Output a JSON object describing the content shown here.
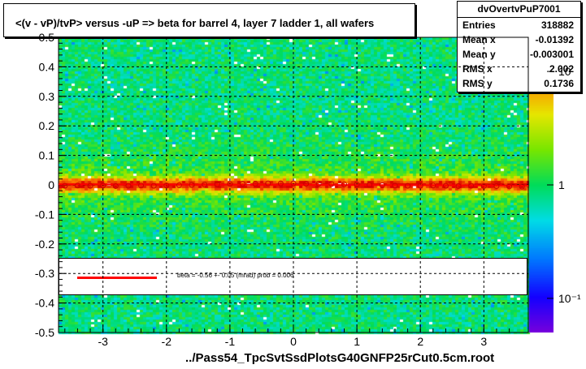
{
  "title": "<(v - vP)/tvP> versus  -uP => beta for barrel 4, layer 7 ladder 1, all wafers",
  "stats": {
    "name": "dvOvertvPuP7001",
    "rows": [
      {
        "key": "Entries",
        "value": "318882"
      },
      {
        "key": "Mean x",
        "value": "-0.01392"
      },
      {
        "key": "Mean y",
        "value": "-0.003001"
      },
      {
        "key": "RMS x",
        "value": "2.002"
      },
      {
        "key": "RMS y",
        "value": "0.1736"
      }
    ]
  },
  "legend": {
    "text": "beta =   -0.56 +-  0.05 (mrad) prob = 0.006",
    "line_color": "#ff0000"
  },
  "footer": "../Pass54_TpcSvtSsdPlotsG40GNFP25rCut0.5cm.root",
  "chart_data": {
    "type": "heatmap",
    "xlim": [
      -3.7,
      3.7
    ],
    "ylim": [
      -0.5,
      0.5
    ],
    "x_ticks": [
      -3,
      -2,
      -1,
      0,
      1,
      2,
      3
    ],
    "y_ticks": [
      -0.5,
      -0.4,
      -0.3,
      -0.2,
      -0.1,
      0,
      0.1,
      0.2,
      0.3,
      0.4,
      0.5
    ],
    "y_tick_labels": [
      "-0.5",
      "-0.4",
      "-0.3",
      "-0.2",
      "-0.1",
      "0",
      "0.1",
      "0.2",
      "0.3",
      "0.4",
      "0.5"
    ],
    "grid": true,
    "colorbar": {
      "scale": "log",
      "tick_labels": [
        "10",
        "1",
        "10⁻¹"
      ],
      "tick_values": [
        10,
        1,
        0.1
      ]
    },
    "band_center": 0.0,
    "band_sigma": 0.018,
    "profile_points": {
      "x": [
        -3.6,
        -3.4,
        -3.2,
        -3.0,
        -2.8,
        -2.6,
        -2.4,
        -2.2,
        -2.0,
        -1.8,
        -1.6,
        -1.4,
        -1.2,
        -1.0,
        -0.8,
        -0.6,
        -0.4,
        -0.2,
        0.0,
        0.2,
        0.4,
        0.6,
        0.8,
        1.0,
        1.2,
        1.4,
        1.6,
        1.8,
        2.0,
        2.2,
        2.4,
        2.6,
        2.8,
        3.0,
        3.2,
        3.4,
        3.6
      ],
      "y": [
        -0.003,
        -0.002,
        -0.003,
        -0.002,
        -0.004,
        -0.003,
        -0.002,
        -0.003,
        -0.002,
        -0.001,
        0.0,
        0.001,
        0.002,
        0.003,
        0.004,
        0.004,
        0.005,
        0.005,
        0.005,
        0.004,
        0.004,
        0.003,
        0.002,
        0.001,
        0.0,
        -0.001,
        -0.002,
        -0.003,
        -0.003,
        -0.002,
        -0.003,
        -0.004,
        -0.003,
        -0.004,
        -0.004,
        -0.005,
        -0.006
      ]
    },
    "fit_line": {
      "slope_per_unit": -0.00056,
      "intercept": 0.0
    }
  }
}
